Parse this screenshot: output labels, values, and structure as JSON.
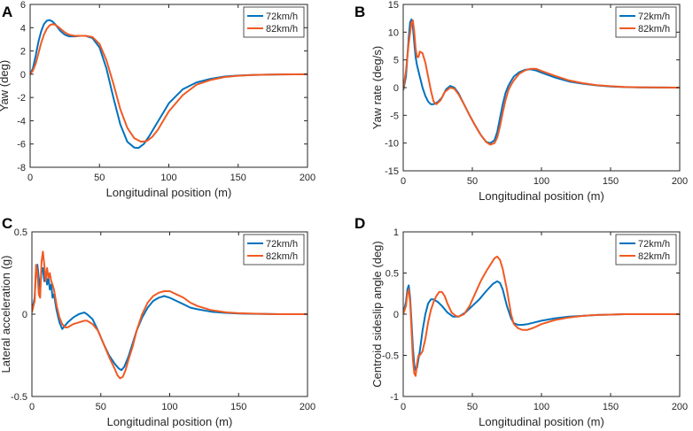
{
  "colors": {
    "series_a": "#0072BD",
    "series_b": "#F05A23",
    "axis": "#262626"
  },
  "chart_data": [
    {
      "panel_letter": "A",
      "type": "line",
      "xlabel": "Longitudinal position (m)",
      "ylabel": "Yaw (deg)",
      "xlim": [
        0,
        200
      ],
      "ylim": [
        -8,
        6
      ],
      "xticks": [
        "0",
        "50",
        "100",
        "150",
        "200"
      ],
      "yticks": [
        "-8",
        "-6",
        "-4",
        "-2",
        "0",
        "2",
        "4",
        "6"
      ],
      "legend": "top-right",
      "series": [
        {
          "name": "72km/h",
          "x": [
            0,
            2,
            4,
            6,
            8,
            10,
            12,
            14,
            16,
            18,
            20,
            22,
            25,
            28,
            32,
            36,
            40,
            45,
            50,
            55,
            60,
            65,
            70,
            75,
            78,
            82,
            86,
            90,
            95,
            100,
            110,
            120,
            130,
            140,
            150,
            160,
            170,
            180,
            190,
            200
          ],
          "y": [
            0,
            0.5,
            1.6,
            2.8,
            3.7,
            4.3,
            4.6,
            4.65,
            4.55,
            4.3,
            4.0,
            3.7,
            3.4,
            3.25,
            3.25,
            3.3,
            3.3,
            3.1,
            2.3,
            0.5,
            -2.0,
            -4.3,
            -5.8,
            -6.3,
            -6.35,
            -6.0,
            -5.3,
            -4.5,
            -3.5,
            -2.5,
            -1.3,
            -0.7,
            -0.4,
            -0.2,
            -0.12,
            -0.07,
            -0.04,
            -0.02,
            -0.01,
            0
          ]
        },
        {
          "name": "82km/h",
          "x": [
            0,
            2,
            4,
            6,
            8,
            10,
            12,
            14,
            16,
            18,
            20,
            22,
            25,
            28,
            32,
            36,
            40,
            45,
            50,
            55,
            60,
            65,
            70,
            75,
            80,
            84,
            88,
            92,
            96,
            100,
            110,
            120,
            130,
            140,
            150,
            160,
            170,
            180,
            190,
            200
          ],
          "y": [
            0,
            0.3,
            0.9,
            1.8,
            2.7,
            3.4,
            3.9,
            4.2,
            4.3,
            4.25,
            4.1,
            3.9,
            3.6,
            3.4,
            3.3,
            3.3,
            3.3,
            3.2,
            2.6,
            1.2,
            -0.8,
            -3.0,
            -4.6,
            -5.5,
            -5.8,
            -5.75,
            -5.4,
            -4.8,
            -4.0,
            -3.2,
            -1.8,
            -0.9,
            -0.5,
            -0.25,
            -0.13,
            -0.07,
            -0.04,
            -0.02,
            -0.01,
            0
          ]
        }
      ]
    },
    {
      "panel_letter": "B",
      "type": "line",
      "xlabel": "Longitudinal position (m)",
      "ylabel": "Yaw rate (deg/s)",
      "xlim": [
        0,
        200
      ],
      "ylim": [
        -15,
        15
      ],
      "xticks": [
        "0",
        "50",
        "100",
        "150",
        "200"
      ],
      "yticks": [
        "-15",
        "-10",
        "-5",
        "0",
        "5",
        "10",
        "15"
      ],
      "legend": "top-right",
      "series": [
        {
          "name": "72km/h",
          "x": [
            0,
            2,
            4,
            5,
            6,
            7,
            8,
            9,
            10,
            12,
            14,
            16,
            18,
            20,
            22,
            25,
            28,
            31,
            34,
            37,
            40,
            44,
            48,
            52,
            56,
            60,
            63,
            66,
            68,
            70,
            72,
            74,
            76,
            78,
            80,
            84,
            88,
            92,
            96,
            100,
            110,
            120,
            130,
            140,
            150,
            160,
            170,
            180,
            190,
            200
          ],
          "y": [
            -0.5,
            2,
            9,
            11.8,
            12.3,
            11,
            8,
            5.5,
            4,
            2,
            0,
            -1.5,
            -2.5,
            -3,
            -3,
            -2.6,
            -1.8,
            -0.3,
            0.3,
            0,
            -1,
            -3,
            -5,
            -6.8,
            -8.5,
            -9.8,
            -10,
            -9.5,
            -8,
            -5.5,
            -3,
            -1,
            0.3,
            1.2,
            2.0,
            2.8,
            3.2,
            3.3,
            3.1,
            2.7,
            1.8,
            1.1,
            0.7,
            0.4,
            0.2,
            0.1,
            0.05,
            0.02,
            0.01,
            0
          ]
        },
        {
          "name": "82km/h",
          "x": [
            0,
            2,
            4,
            6,
            7,
            8,
            9,
            10,
            11,
            12,
            14,
            16,
            18,
            20,
            22,
            24,
            27,
            30,
            34,
            37,
            40,
            44,
            48,
            52,
            56,
            60,
            63,
            66,
            68,
            70,
            72,
            74,
            76,
            78,
            80,
            84,
            88,
            92,
            96,
            100,
            110,
            120,
            130,
            140,
            150,
            160,
            170,
            180,
            190,
            200
          ],
          "y": [
            -0.3,
            3,
            8,
            11.8,
            12.1,
            10,
            7,
            5.5,
            5.5,
            6.5,
            6.2,
            4.5,
            2,
            -0.5,
            -2.5,
            -3,
            -2.3,
            -0.8,
            0,
            -0.2,
            -1.2,
            -3,
            -5,
            -6.8,
            -8.5,
            -9.8,
            -10.3,
            -10,
            -9,
            -7,
            -4.5,
            -2.3,
            -0.5,
            0.5,
            1.3,
            2.5,
            3.1,
            3.4,
            3.4,
            3.0,
            2.1,
            1.3,
            0.8,
            0.45,
            0.25,
            0.13,
            0.06,
            0.03,
            0.01,
            0
          ]
        }
      ]
    },
    {
      "panel_letter": "C",
      "type": "line",
      "xlabel": "Longitudinal position (m)",
      "ylabel": "Lateral acceleration (g)",
      "xlim": [
        0,
        200
      ],
      "ylim": [
        -0.5,
        0.5
      ],
      "xticks": [
        "0",
        "50",
        "100",
        "150",
        "200"
      ],
      "yticks": [
        "-0.5",
        "0",
        "0.5"
      ],
      "legend": "top-right",
      "series": [
        {
          "name": "72km/h",
          "x": [
            0,
            2,
            3,
            4,
            5,
            6,
            7,
            8,
            9,
            10,
            11,
            12,
            13,
            14,
            15,
            16,
            18,
            20,
            22,
            24,
            26,
            30,
            34,
            38,
            40,
            44,
            48,
            52,
            56,
            60,
            63,
            65,
            67,
            70,
            73,
            76,
            80,
            84,
            88,
            92,
            96,
            100,
            105,
            110,
            115,
            120,
            130,
            140,
            150,
            160,
            170,
            180,
            190,
            200
          ],
          "y": [
            0.02,
            0.1,
            0.28,
            0.3,
            0.22,
            0.15,
            0.26,
            0.28,
            0.2,
            0.25,
            0.18,
            0.22,
            0.15,
            0.18,
            0.1,
            0.12,
            0.02,
            -0.05,
            -0.09,
            -0.07,
            -0.05,
            -0.02,
            0,
            0.01,
            0,
            -0.03,
            -0.1,
            -0.18,
            -0.25,
            -0.3,
            -0.33,
            -0.34,
            -0.32,
            -0.26,
            -0.18,
            -0.1,
            -0.02,
            0.04,
            0.08,
            0.1,
            0.11,
            0.1,
            0.08,
            0.06,
            0.04,
            0.03,
            0.015,
            0.008,
            0.004,
            0.002,
            0.001,
            0,
            0,
            0
          ]
        },
        {
          "name": "82km/h",
          "x": [
            0,
            2,
            3,
            4,
            5,
            6,
            7,
            8,
            9,
            10,
            11,
            12,
            13,
            14,
            15,
            16,
            18,
            20,
            22,
            24,
            26,
            30,
            34,
            38,
            40,
            44,
            48,
            52,
            56,
            60,
            62,
            64,
            66,
            68,
            70,
            73,
            76,
            80,
            84,
            88,
            92,
            96,
            100,
            105,
            110,
            115,
            120,
            130,
            140,
            150,
            160,
            170,
            180,
            190,
            200
          ],
          "y": [
            0.01,
            0.08,
            0.3,
            0.25,
            0.12,
            0.1,
            0.32,
            0.38,
            0.3,
            0.2,
            0.28,
            0.22,
            0.25,
            0.2,
            0.18,
            0.15,
            0.05,
            -0.02,
            -0.06,
            -0.08,
            -0.08,
            -0.06,
            -0.05,
            -0.04,
            -0.04,
            -0.06,
            -0.1,
            -0.18,
            -0.26,
            -0.33,
            -0.37,
            -0.39,
            -0.38,
            -0.34,
            -0.28,
            -0.2,
            -0.1,
            0,
            0.07,
            0.11,
            0.13,
            0.14,
            0.14,
            0.12,
            0.1,
            0.07,
            0.05,
            0.025,
            0.012,
            0.006,
            0.003,
            0.001,
            0,
            0,
            0
          ]
        }
      ]
    },
    {
      "panel_letter": "D",
      "type": "line",
      "xlabel": "Longitudinal position (m)",
      "ylabel": "Centroid sideslip angle (deg)",
      "xlim": [
        0,
        200
      ],
      "ylim": [
        -1,
        1
      ],
      "xticks": [
        "0",
        "50",
        "100",
        "150",
        "200"
      ],
      "yticks": [
        "-1",
        "-0.5",
        "0",
        "0.5",
        "1"
      ],
      "legend": "top-right",
      "series": [
        {
          "name": "72km/h",
          "x": [
            0,
            2,
            3,
            4,
            5,
            6,
            7,
            8,
            9,
            10,
            12,
            14,
            16,
            18,
            20,
            22,
            25,
            28,
            32,
            36,
            40,
            45,
            50,
            55,
            60,
            65,
            68,
            70,
            72,
            75,
            78,
            80,
            83,
            86,
            90,
            95,
            100,
            110,
            120,
            130,
            140,
            150,
            160,
            170,
            180,
            190,
            200
          ],
          "y": [
            0,
            0.15,
            0.3,
            0.35,
            0.2,
            -0.1,
            -0.4,
            -0.62,
            -0.68,
            -0.65,
            -0.45,
            -0.2,
            0,
            0.13,
            0.18,
            0.18,
            0.15,
            0.1,
            0.02,
            -0.03,
            -0.03,
            0.02,
            0.1,
            0.18,
            0.28,
            0.37,
            0.4,
            0.38,
            0.3,
            0.1,
            -0.05,
            -0.11,
            -0.13,
            -0.13,
            -0.12,
            -0.1,
            -0.08,
            -0.05,
            -0.03,
            -0.02,
            -0.01,
            -0.005,
            0,
            0,
            0,
            0,
            0
          ]
        },
        {
          "name": "82km/h",
          "x": [
            0,
            2,
            3,
            4,
            5,
            6,
            7,
            8,
            9,
            10,
            11,
            12,
            14,
            16,
            18,
            20,
            22,
            24,
            26,
            28,
            30,
            32,
            35,
            38,
            40,
            44,
            48,
            52,
            56,
            60,
            63,
            66,
            68,
            70,
            72,
            75,
            78,
            80,
            83,
            86,
            90,
            95,
            100,
            110,
            120,
            130,
            140,
            150,
            160,
            170,
            180,
            190,
            200
          ],
          "y": [
            0,
            0.1,
            0.25,
            0.3,
            0.15,
            -0.2,
            -0.55,
            -0.72,
            -0.75,
            -0.6,
            -0.5,
            -0.5,
            -0.45,
            -0.3,
            -0.1,
            0.05,
            0.15,
            0.22,
            0.27,
            0.27,
            0.22,
            0.13,
            0.02,
            -0.02,
            -0.03,
            0,
            0.1,
            0.25,
            0.4,
            0.52,
            0.6,
            0.68,
            0.7,
            0.66,
            0.55,
            0.3,
            0,
            -0.12,
            -0.17,
            -0.19,
            -0.19,
            -0.16,
            -0.12,
            -0.07,
            -0.04,
            -0.02,
            -0.01,
            -0.005,
            0,
            0,
            0,
            0,
            0
          ]
        }
      ]
    }
  ]
}
